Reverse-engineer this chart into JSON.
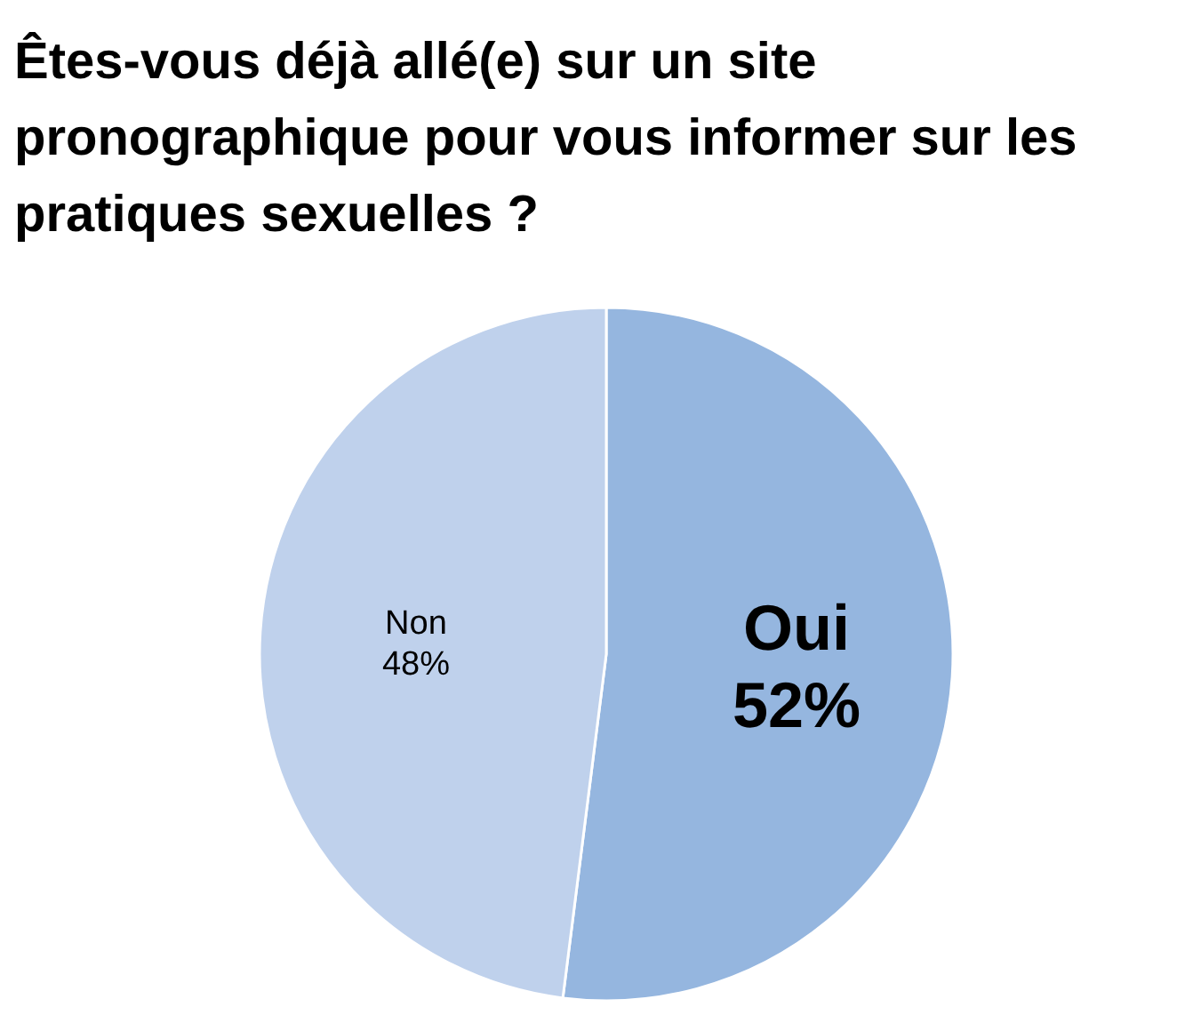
{
  "chart_data": {
    "type": "pie",
    "title": "Êtes-vous déjà allé(e) sur un site pronographique pour vous informer sur les pratiques sexuelles ?",
    "categories": [
      "Oui",
      "Non"
    ],
    "values": [
      52,
      48
    ],
    "colors": [
      "#95b6df",
      "#bfd1ec"
    ],
    "value_labels": [
      "52%",
      "48%"
    ],
    "legend": false
  }
}
